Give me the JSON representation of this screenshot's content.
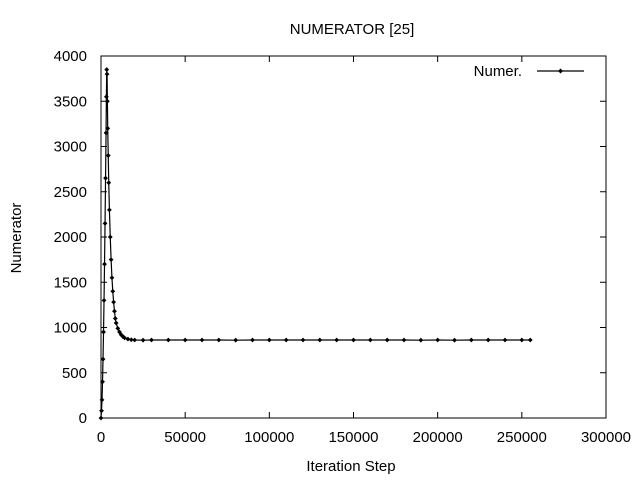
{
  "chart_data": {
    "type": "line",
    "title": "NUMERATOR [25]",
    "xlabel": "Iteration Step",
    "ylabel": "Numerator",
    "xlim": [
      0,
      300000
    ],
    "ylim": [
      0,
      4000
    ],
    "xticks": [
      0,
      50000,
      100000,
      150000,
      200000,
      250000,
      300000
    ],
    "yticks": [
      0,
      500,
      1000,
      1500,
      2000,
      2500,
      3000,
      3500,
      4000
    ],
    "grid": false,
    "legend_position": "top-right",
    "series": [
      {
        "name": "Numer.",
        "color": "#000000",
        "marker": "diamond",
        "points": [
          [
            0,
            0
          ],
          [
            300,
            80
          ],
          [
            600,
            200
          ],
          [
            900,
            400
          ],
          [
            1200,
            650
          ],
          [
            1500,
            950
          ],
          [
            1800,
            1300
          ],
          [
            2100,
            1700
          ],
          [
            2400,
            2150
          ],
          [
            2700,
            2650
          ],
          [
            3000,
            3150
          ],
          [
            3200,
            3550
          ],
          [
            3400,
            3850
          ],
          [
            3600,
            3800
          ],
          [
            3800,
            3500
          ],
          [
            4000,
            3200
          ],
          [
            4300,
            2900
          ],
          [
            4600,
            2600
          ],
          [
            5000,
            2300
          ],
          [
            5500,
            2000
          ],
          [
            6000,
            1750
          ],
          [
            6500,
            1550
          ],
          [
            7000,
            1400
          ],
          [
            7500,
            1280
          ],
          [
            8000,
            1180
          ],
          [
            8500,
            1100
          ],
          [
            9000,
            1050
          ],
          [
            10000,
            990
          ],
          [
            11000,
            950
          ],
          [
            12000,
            920
          ],
          [
            13000,
            900
          ],
          [
            14000,
            885
          ],
          [
            16000,
            872
          ],
          [
            18000,
            865
          ],
          [
            20000,
            862
          ],
          [
            25000,
            860
          ],
          [
            30000,
            862
          ],
          [
            40000,
            862
          ],
          [
            50000,
            862
          ],
          [
            60000,
            862
          ],
          [
            70000,
            862
          ],
          [
            80000,
            860
          ],
          [
            90000,
            862
          ],
          [
            100000,
            862
          ],
          [
            110000,
            862
          ],
          [
            120000,
            862
          ],
          [
            130000,
            862
          ],
          [
            140000,
            862
          ],
          [
            150000,
            862
          ],
          [
            160000,
            862
          ],
          [
            170000,
            862
          ],
          [
            180000,
            862
          ],
          [
            190000,
            860
          ],
          [
            200000,
            862
          ],
          [
            210000,
            860
          ],
          [
            220000,
            862
          ],
          [
            230000,
            862
          ],
          [
            240000,
            862
          ],
          [
            250000,
            862
          ],
          [
            255000,
            862
          ]
        ]
      }
    ]
  }
}
